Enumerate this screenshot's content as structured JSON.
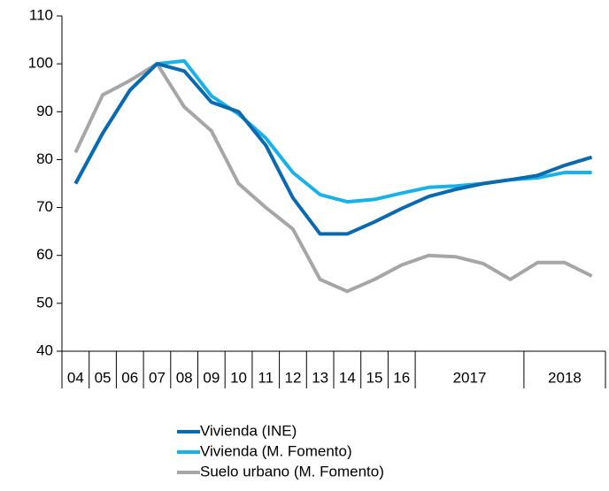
{
  "chart_data": {
    "type": "line",
    "categories": [
      "04",
      "05",
      "06",
      "07",
      "08",
      "09",
      "10",
      "11",
      "12",
      "13",
      "14",
      "15",
      "16",
      "2017",
      null,
      null,
      null,
      "2018",
      null,
      null
    ],
    "series": [
      {
        "name": "Vivienda (INE)",
        "color": "#0a6aad",
        "values": [
          75,
          85.5,
          94.5,
          100,
          98.5,
          92,
          90,
          83,
          72,
          64.5,
          64.5,
          67,
          69.8,
          72.3,
          73.8,
          75,
          75.8,
          76.7,
          78.8,
          80.5
        ]
      },
      {
        "name": "Vivienda (M. Fomento)",
        "color": "#19b2e8",
        "values": [
          75,
          85.5,
          94.5,
          100,
          100.6,
          93.3,
          89.5,
          84.5,
          77.3,
          72.7,
          71.2,
          71.7,
          73,
          74.2,
          74.5,
          75,
          75.8,
          76.2,
          77.3,
          77.3
        ]
      },
      {
        "name": "Suelo urbano (M. Fomento)",
        "color": "#a6a6a6",
        "values": [
          81.5,
          93.5,
          96.5,
          100,
          91,
          86,
          75,
          70,
          65.5,
          55,
          52.5,
          55,
          58,
          60,
          59.7,
          58.3,
          55,
          58.5,
          58.5,
          55.7
        ]
      }
    ],
    "ylim": [
      40,
      110
    ],
    "yticks": [
      40,
      50,
      60,
      70,
      80,
      90,
      100,
      110
    ]
  }
}
